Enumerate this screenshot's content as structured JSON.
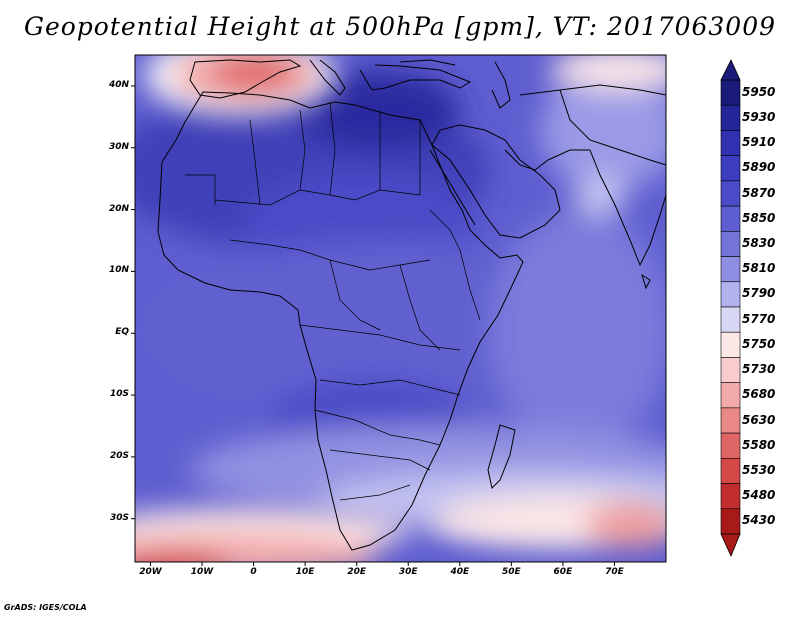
{
  "title": "Geopotential Height at 500hPa [gpm], VT: 2017063009",
  "credit": "GrADS: IGES/COLA",
  "map": {
    "lon_range": [
      -23,
      80
    ],
    "lat_range": [
      -37,
      45
    ],
    "lat_labels": [
      "40N",
      "30N",
      "20N",
      "10N",
      "EQ",
      "10S",
      "20S",
      "30S"
    ],
    "lon_labels": [
      "20W",
      "10W",
      "0",
      "10E",
      "20E",
      "30E",
      "40E",
      "50E",
      "60E",
      "70E"
    ]
  },
  "colorbar": {
    "levels": [
      "5950",
      "5930",
      "5910",
      "5890",
      "5870",
      "5850",
      "5830",
      "5810",
      "5790",
      "5770",
      "5750",
      "5730",
      "5680",
      "5630",
      "5580",
      "5530",
      "5480",
      "5430"
    ],
    "colors": [
      "#1a1a7a",
      "#25259a",
      "#3030b0",
      "#3c3cc0",
      "#4b4bc8",
      "#5e5ed0",
      "#7474d8",
      "#8e8ee2",
      "#b2b2ee",
      "#d8d8f6",
      "#fde8e8",
      "#f8cccc",
      "#f2aaaa",
      "#ea8888",
      "#e06666",
      "#d44848",
      "#c22e2e",
      "#a81a1a"
    ]
  }
}
